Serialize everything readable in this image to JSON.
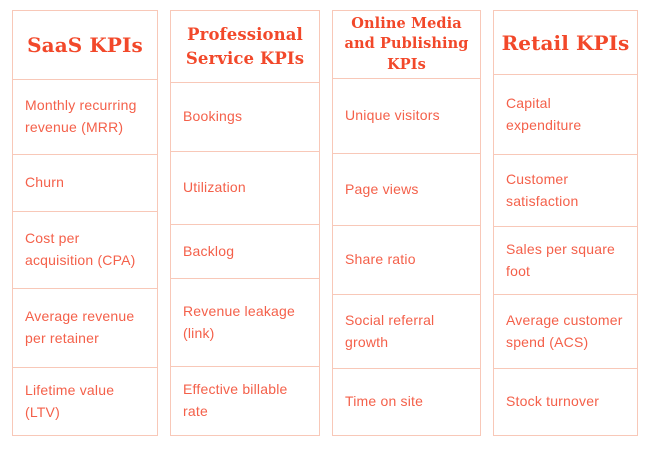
{
  "title": "KPI categories comparison table",
  "colors": {
    "header_text": "#f2482a",
    "body_text": "#f4604a",
    "border": "#f8c8b8",
    "background": "#ffffff"
  },
  "columns": [
    {
      "header": "SaaS KPIs",
      "items": [
        "Monthly recurring revenue (MRR)",
        "Churn",
        "Cost per acquisition (CPA)",
        "Average revenue per retainer",
        "Lifetime value (LTV)"
      ]
    },
    {
      "header": "Professional Service KPIs",
      "items": [
        "Bookings",
        "Utilization",
        "Backlog",
        "Revenue leakage (link)",
        "Effective billable rate"
      ]
    },
    {
      "header": "Online Media and Publishing KPIs",
      "items": [
        "Unique visitors",
        "Page views",
        "Share ratio",
        "Social referral growth",
        "Time on site"
      ]
    },
    {
      "header": "Retail KPIs",
      "items": [
        "Capital expenditure",
        "Customer satisfaction",
        "Sales per square foot",
        "Average customer spend (ACS)",
        "Stock turnover"
      ]
    }
  ]
}
